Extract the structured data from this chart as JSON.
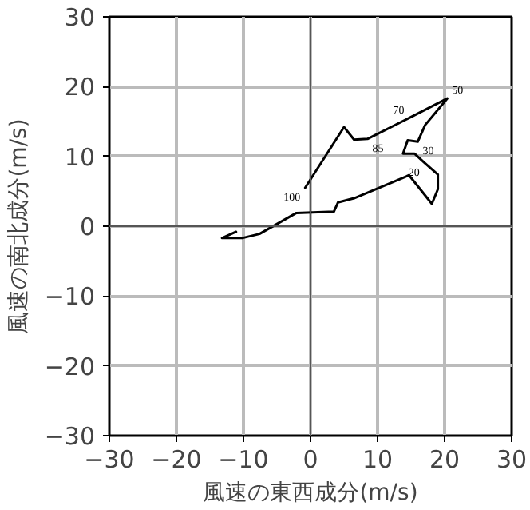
{
  "chart_data": {
    "type": "line",
    "xlabel": "風速の東西成分(m/s)",
    "ylabel": "風速の南北成分(m/s)",
    "xlim": [
      -30,
      30
    ],
    "ylim": [
      -30,
      30
    ],
    "xticks": [
      -30,
      -20,
      -10,
      0,
      10,
      20,
      30
    ],
    "yticks": [
      -30,
      -20,
      -10,
      0,
      10,
      20,
      30
    ],
    "grid": true,
    "marker": "none",
    "line_style": "solid",
    "series": [
      {
        "color": "#000000",
        "x": [
          -0.8,
          5.0,
          6.5,
          8.5,
          14.7,
          20.4,
          17.1,
          16.0,
          14.5,
          13.8,
          15.5,
          17.0,
          19.0,
          19.0,
          18.1,
          14.7,
          6.5,
          4.1,
          3.5,
          -2.1,
          -7.6,
          -10.2,
          -13.2,
          -11.1
        ],
        "values": [
          5.5,
          14.2,
          12.4,
          12.5,
          15.5,
          18.3,
          14.5,
          12.1,
          12.3,
          10.4,
          10.4,
          9.1,
          7.4,
          5.3,
          3.2,
          7.3,
          4.0,
          3.4,
          2.1,
          1.9,
          -1.1,
          -1.7,
          -1.7,
          -0.8
        ]
      }
    ],
    "annotations": [
      {
        "text": "100",
        "x": -0.8,
        "y": 5.5
      },
      {
        "text": "85",
        "x": 8.5,
        "y": 12.5
      },
      {
        "text": "70",
        "x": 14.7,
        "y": 15.5
      },
      {
        "text": "50",
        "x": 20.4,
        "y": 18.3
      },
      {
        "text": "30",
        "x": 16.0,
        "y": 12.1
      },
      {
        "text": "20",
        "x": 17.0,
        "y": 9.1
      }
    ]
  }
}
